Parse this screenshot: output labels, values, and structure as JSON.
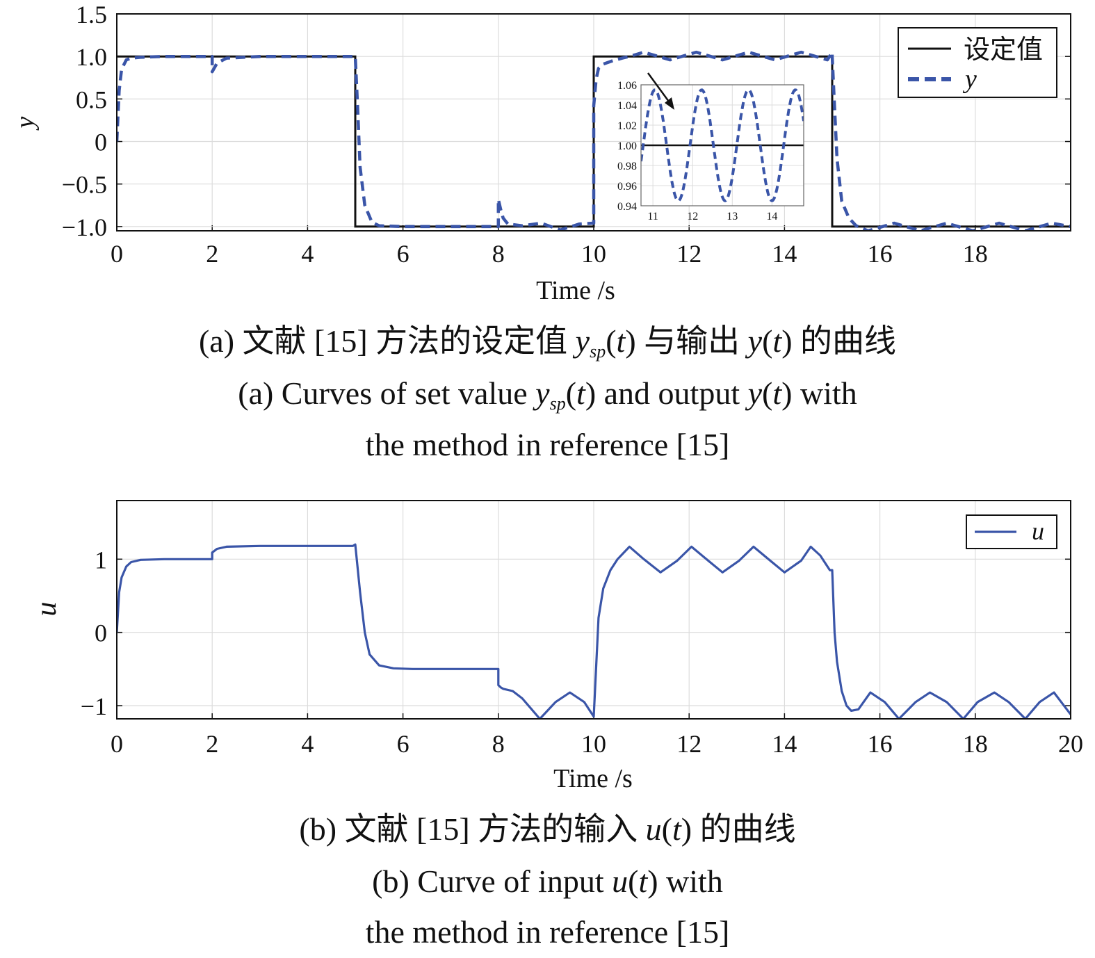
{
  "colors": {
    "setpoint": "#111111",
    "output": "#3a55a8",
    "input": "#3a55a8",
    "grid": "#dcdcdc",
    "axis": "#111111"
  },
  "chart_data": [
    {
      "type": "line",
      "title": "",
      "xlabel": "Time /s",
      "ylabel": "y",
      "xlim": [
        0,
        20
      ],
      "ylim": [
        -1.05,
        1.5
      ],
      "xticks": [
        0,
        2,
        4,
        6,
        8,
        10,
        12,
        14,
        16,
        18
      ],
      "xtick_labels": [
        "0",
        "2",
        "4",
        "6",
        "8",
        "10",
        "12",
        "14",
        "16",
        "18"
      ],
      "yticks": [
        -1.0,
        -0.5,
        0,
        0.5,
        1.0,
        1.5
      ],
      "ytick_labels": [
        "−1.0",
        "−0.5",
        "0",
        "0.5",
        "1.0",
        "1.5"
      ],
      "grid": true,
      "legend_position": "top-right",
      "series": [
        {
          "name": "设定值",
          "style": "solid",
          "x": [
            0,
            5,
            5,
            10,
            10,
            15,
            15,
            20
          ],
          "y": [
            1,
            1,
            -1,
            -1,
            1,
            1,
            -1,
            -1
          ]
        },
        {
          "name": "y",
          "style": "dashed",
          "x": [
            0,
            0.05,
            0.1,
            0.2,
            0.3,
            0.5,
            1.0,
            2.0,
            2.0,
            2.1,
            2.3,
            3.0,
            5.0,
            5.05,
            5.1,
            5.2,
            5.35,
            5.5,
            6.0,
            8.0,
            8.0,
            8.05,
            8.1,
            8.2,
            8.5,
            8.9,
            9.3,
            9.7,
            10.0,
            10.0,
            10.05,
            10.1,
            10.2,
            10.4,
            10.6,
            10.75,
            11.05,
            11.6,
            12.15,
            12.7,
            13.25,
            13.8,
            14.35,
            14.9,
            15.0,
            15.0,
            15.05,
            15.1,
            15.2,
            15.35,
            15.5,
            15.75,
            16.3,
            16.85,
            17.4,
            17.95,
            18.5,
            19.05,
            19.6,
            20.0
          ],
          "y": [
            0,
            0.6,
            0.85,
            0.96,
            0.98,
            0.99,
            1.0,
            1.0,
            0.82,
            0.92,
            0.98,
            1.0,
            1.0,
            0.4,
            -0.3,
            -0.75,
            -0.95,
            -0.99,
            -1.0,
            -1.0,
            -0.68,
            -0.8,
            -0.9,
            -0.97,
            -0.99,
            -0.96,
            -1.04,
            -0.97,
            -0.96,
            0.42,
            0.73,
            0.86,
            0.91,
            0.95,
            0.98,
            1.0,
            1.05,
            0.96,
            1.05,
            0.96,
            1.05,
            0.96,
            1.05,
            0.96,
            1.05,
            1.0,
            0.4,
            -0.2,
            -0.7,
            -0.9,
            -0.99,
            -1.05,
            -0.96,
            -1.05,
            -0.96,
            -1.05,
            -0.96,
            -1.05,
            -0.96,
            -1.0
          ]
        }
      ],
      "inset": {
        "type": "line",
        "xlim": [
          10.7,
          14.8
        ],
        "ylim": [
          0.94,
          1.06
        ],
        "xticks": [
          11,
          12,
          13,
          14
        ],
        "xtick_labels": [
          "11",
          "12",
          "13",
          "14"
        ],
        "yticks": [
          0.94,
          0.96,
          0.98,
          1.0,
          1.02,
          1.04,
          1.06
        ],
        "ytick_labels": [
          "0.94",
          "0.96",
          "0.98",
          "1.00",
          "1.02",
          "1.04",
          "1.06"
        ],
        "grid": true,
        "setpoint": 1.0,
        "oscillation": {
          "center": 1.0,
          "amplitude": 0.055,
          "period": 1.18,
          "first_peak_x": 11.05
        }
      }
    },
    {
      "type": "line",
      "title": "",
      "xlabel": "Time /s",
      "ylabel": "u",
      "xlim": [
        0,
        20
      ],
      "ylim": [
        -1.18,
        1.8
      ],
      "xticks": [
        0,
        2,
        4,
        6,
        8,
        10,
        12,
        14,
        16,
        18,
        20
      ],
      "xtick_labels": [
        "0",
        "2",
        "4",
        "6",
        "8",
        "10",
        "12",
        "14",
        "16",
        "18",
        "20"
      ],
      "yticks": [
        -1,
        0,
        1
      ],
      "ytick_labels": [
        "−1",
        "0",
        "1"
      ],
      "grid": true,
      "legend_position": "top-right",
      "series": [
        {
          "name": "u",
          "style": "solid",
          "x": [
            0,
            0.05,
            0.1,
            0.2,
            0.3,
            0.5,
            1.0,
            2.0,
            2.0,
            2.1,
            2.3,
            3.0,
            4.9,
            4.95,
            5.0,
            5.1,
            5.2,
            5.3,
            5.5,
            5.8,
            6.2,
            8.0,
            8.0,
            8.05,
            8.1,
            8.3,
            8.5,
            8.87,
            9.2,
            9.5,
            9.8,
            10.0,
            10.0,
            10.1,
            10.2,
            10.35,
            10.5,
            10.75,
            11.05,
            11.4,
            11.75,
            12.05,
            12.4,
            12.7,
            13.05,
            13.35,
            13.7,
            14.0,
            14.35,
            14.55,
            14.75,
            14.95,
            15.0,
            15.05,
            15.1,
            15.2,
            15.3,
            15.4,
            15.55,
            15.8,
            16.1,
            16.4,
            16.75,
            17.05,
            17.4,
            17.75,
            18.05,
            18.4,
            18.7,
            19.05,
            19.35,
            19.65,
            20.0
          ],
          "y": [
            0,
            0.55,
            0.75,
            0.9,
            0.96,
            0.99,
            1.0,
            1.0,
            1.09,
            1.14,
            1.17,
            1.18,
            1.18,
            1.18,
            1.2,
            0.55,
            0.0,
            -0.3,
            -0.45,
            -0.49,
            -0.5,
            -0.5,
            -0.72,
            -0.75,
            -0.77,
            -0.8,
            -0.9,
            -1.18,
            -0.95,
            -0.82,
            -0.95,
            -1.15,
            -1.15,
            0.2,
            0.6,
            0.85,
            1.0,
            1.17,
            1.0,
            0.82,
            0.98,
            1.17,
            0.98,
            0.82,
            0.98,
            1.17,
            0.98,
            0.82,
            0.98,
            1.17,
            1.05,
            0.85,
            0.85,
            0.0,
            -0.4,
            -0.8,
            -1.0,
            -1.07,
            -1.05,
            -0.82,
            -0.95,
            -1.18,
            -0.95,
            -0.82,
            -0.95,
            -1.18,
            -0.95,
            -0.82,
            -0.95,
            -1.18,
            -0.95,
            -0.82,
            -1.12
          ]
        }
      ]
    }
  ],
  "captions": {
    "a_cn": {
      "pre": "(a) 文献 [15] 方法的设定值 ",
      "v1": "y",
      "sub": "sp",
      "mid": "(",
      "t1": "t",
      "mid2": ") 与输出 ",
      "v2": "y",
      "mid3": "(",
      "t2": "t",
      "post": ") 的曲线"
    },
    "a_en1": {
      "pre": "(a) Curves of set value ",
      "v1": "y",
      "sub": "sp",
      "mid": "(",
      "t1": "t",
      "mid2": ") and output ",
      "v2": "y",
      "mid3": "(",
      "t2": "t",
      "post": ") with"
    },
    "a_en2": "the method in reference [15]",
    "b_cn": {
      "pre": "(b) 文献 [15] 方法的输入 ",
      "v": "u",
      "mid": "(",
      "t": "t",
      "post": ") 的曲线"
    },
    "b_en1": {
      "pre": "(b) Curve of input ",
      "v": "u",
      "mid": "(",
      "t": "t",
      "post": ") with"
    },
    "b_en2": "the method in reference [15]"
  }
}
